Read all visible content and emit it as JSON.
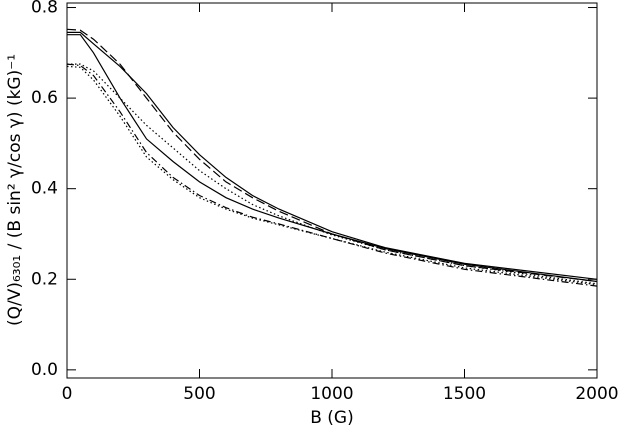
{
  "chart_data": {
    "type": "line",
    "x_label": "B (G)",
    "y_label": "(Q/V)₆₃₀₁ / (B sin² γ/cos γ) (kG)⁻¹",
    "x": [
      0,
      50,
      100,
      200,
      300,
      400,
      500,
      600,
      700,
      800,
      1000,
      1200,
      1500,
      2000
    ],
    "series": [
      {
        "color": "#000000",
        "dash": "solid",
        "values": [
          0.745,
          0.745,
          0.72,
          0.67,
          0.61,
          0.535,
          0.475,
          0.425,
          0.385,
          0.355,
          0.305,
          0.27,
          0.235,
          0.2
        ]
      },
      {
        "color": "#000000",
        "dash": "dashed",
        "values": [
          0.752,
          0.75,
          0.73,
          0.675,
          0.6,
          0.525,
          0.465,
          0.415,
          0.38,
          0.35,
          0.3,
          0.265,
          0.23,
          0.195
        ]
      },
      {
        "color": "#000000",
        "dash": "solid",
        "values": [
          0.74,
          0.74,
          0.7,
          0.6,
          0.51,
          0.46,
          0.415,
          0.38,
          0.355,
          0.335,
          0.3,
          0.268,
          0.233,
          0.195
        ]
      },
      {
        "color": "#000000",
        "dash": "dotted",
        "values": [
          0.675,
          0.675,
          0.66,
          0.6,
          0.54,
          0.49,
          0.44,
          0.4,
          0.365,
          0.34,
          0.298,
          0.265,
          0.23,
          0.19
        ]
      },
      {
        "color": "#000000",
        "dash": "dotted",
        "values": [
          0.67,
          0.668,
          0.64,
          0.56,
          0.47,
          0.42,
          0.38,
          0.355,
          0.335,
          0.32,
          0.29,
          0.26,
          0.225,
          0.188
        ]
      },
      {
        "color": "#000000",
        "dash": "dashdot",
        "values": [
          0.675,
          0.672,
          0.65,
          0.57,
          0.48,
          0.425,
          0.385,
          0.358,
          0.337,
          0.322,
          0.29,
          0.258,
          0.222,
          0.185
        ]
      }
    ],
    "xlim": [
      0,
      2000
    ],
    "xticks": [
      0,
      500,
      1000,
      1500,
      2000
    ],
    "ylim": [
      -0.018,
      0.81
    ],
    "yticks": [
      {
        "value": 0,
        "label": "0.0"
      },
      0.2,
      0.4,
      0.6,
      0.8
    ],
    "grid": false
  }
}
